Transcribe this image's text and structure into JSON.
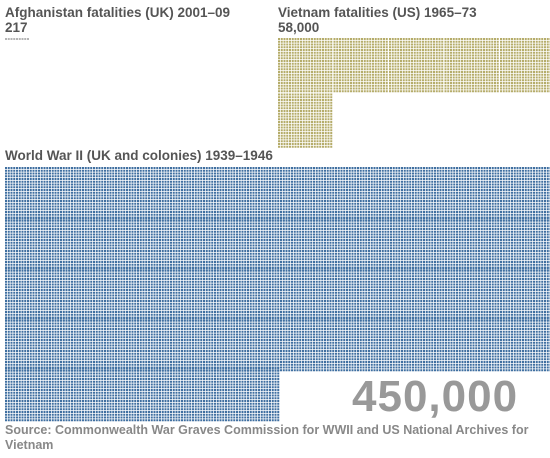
{
  "chart_data": [
    {
      "type": "pictogram",
      "title": "Afghanistan fatalities (UK) 2001–09",
      "value_label": "217",
      "value": 217,
      "color": "#b5b5b5"
    },
    {
      "type": "pictogram",
      "title": "Vietnam fatalities (US) 1965–73",
      "value_label": "58,000",
      "value": 58000,
      "color": "#b5ac6a"
    },
    {
      "type": "pictogram",
      "title": "World War II (UK and colonies) 1939–1946",
      "value_label": "450,000",
      "value": 450000,
      "color": "#3f6fa0"
    }
  ],
  "source": "Source: Commonwealth War Graves Commission for WWII and US National Archives for Vietnam"
}
